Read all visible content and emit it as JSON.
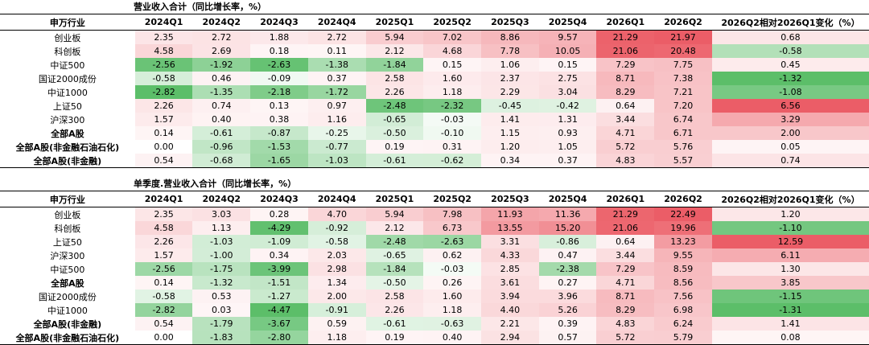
{
  "colors": {
    "positive": "#e8414c",
    "negative": "#3fb24f",
    "text": "#000000",
    "background": "#ffffff"
  },
  "chart_data": [
    {
      "type": "heatmap",
      "title": "营业收入合计（同比增长率，%）",
      "corner_label": "申万行业",
      "columns": [
        "2024Q1",
        "2024Q2",
        "2024Q3",
        "2024Q4",
        "2025Q1",
        "2025Q2",
        "2025Q3",
        "2025Q4",
        "2026Q1",
        "2026Q2"
      ],
      "change_column": "2026Q2相对2026Q1变化（%）",
      "rows": [
        {
          "label": "创业板",
          "bold": false,
          "values": [
            2.35,
            2.72,
            1.88,
            2.72,
            5.94,
            7.02,
            8.86,
            9.57,
            21.29,
            21.97
          ],
          "change": 0.68
        },
        {
          "label": "科创板",
          "bold": false,
          "values": [
            4.58,
            2.69,
            0.18,
            0.11,
            2.12,
            4.68,
            7.78,
            10.05,
            21.06,
            20.48
          ],
          "change": -0.58
        },
        {
          "label": "中证500",
          "bold": false,
          "values": [
            -2.56,
            -1.92,
            -2.63,
            -1.38,
            -1.84,
            0.15,
            1.06,
            0.15,
            7.29,
            7.75
          ],
          "change": 0.45
        },
        {
          "label": "国证2000成份",
          "bold": false,
          "values": [
            -0.58,
            0.46,
            -0.09,
            0.37,
            2.58,
            1.6,
            2.37,
            2.75,
            8.71,
            7.38
          ],
          "change": -1.32
        },
        {
          "label": "中证1000",
          "bold": false,
          "values": [
            -2.82,
            -1.35,
            -2.18,
            -1.72,
            2.26,
            1.18,
            2.29,
            3.04,
            8.29,
            7.21
          ],
          "change": -1.08
        },
        {
          "label": "上证50",
          "bold": false,
          "values": [
            2.26,
            0.74,
            0.13,
            0.97,
            -2.48,
            -2.32,
            -0.45,
            -0.42,
            0.64,
            7.2
          ],
          "change": 6.56
        },
        {
          "label": "沪深300",
          "bold": false,
          "values": [
            1.57,
            0.4,
            0.38,
            1.16,
            -0.65,
            -0.03,
            1.41,
            1.31,
            3.44,
            6.74
          ],
          "change": 3.29
        },
        {
          "label": "全部A股",
          "bold": true,
          "values": [
            0.14,
            -0.61,
            -0.87,
            -0.25,
            -0.5,
            -0.1,
            1.15,
            0.93,
            4.71,
            6.71
          ],
          "change": 2.0
        },
        {
          "label": "全部A股(非金融石油石化)",
          "bold": true,
          "values": [
            0.0,
            -0.96,
            -1.53,
            -0.77,
            0.19,
            0.31,
            1.2,
            1.05,
            5.72,
            5.76
          ],
          "change": 0.05
        },
        {
          "label": "全部A股(非金融)",
          "bold": true,
          "values": [
            0.54,
            -0.68,
            -1.65,
            -1.03,
            -0.61,
            -0.62,
            0.34,
            0.37,
            4.83,
            5.57
          ],
          "change": 0.74
        }
      ]
    },
    {
      "type": "heatmap",
      "title": "单季度.营业收入合计（同比增长率，%）",
      "corner_label": "申万行业",
      "columns": [
        "2024Q1",
        "2024Q2",
        "2024Q3",
        "2024Q4",
        "2025Q1",
        "2025Q2",
        "2025Q3",
        "2025Q4",
        "2026Q1",
        "2026Q2"
      ],
      "change_column": "2026Q2相对2026Q1变化（%）",
      "rows": [
        {
          "label": "创业板",
          "bold": false,
          "values": [
            2.35,
            3.03,
            0.28,
            4.7,
            5.94,
            7.98,
            11.93,
            11.36,
            21.29,
            22.49
          ],
          "change": 1.2
        },
        {
          "label": "科创板",
          "bold": false,
          "values": [
            4.58,
            1.13,
            -4.29,
            -0.92,
            2.12,
            6.73,
            13.55,
            15.2,
            21.06,
            19.96
          ],
          "change": -1.1
        },
        {
          "label": "上证50",
          "bold": false,
          "values": [
            2.26,
            -1.03,
            -1.09,
            -0.58,
            -2.48,
            -2.63,
            3.31,
            -0.86,
            0.64,
            13.23
          ],
          "change": 12.59
        },
        {
          "label": "沪深300",
          "bold": false,
          "values": [
            1.57,
            -1.0,
            0.34,
            2.03,
            -0.65,
            0.62,
            4.33,
            0.47,
            3.44,
            9.55
          ],
          "change": 6.11
        },
        {
          "label": "中证500",
          "bold": false,
          "values": [
            -2.56,
            -1.75,
            -3.99,
            2.98,
            -1.84,
            -0.03,
            2.85,
            -2.38,
            7.29,
            8.59
          ],
          "change": 1.3
        },
        {
          "label": "全部A股",
          "bold": true,
          "values": [
            0.14,
            -1.32,
            -1.51,
            1.34,
            -0.5,
            0.26,
            3.61,
            0.27,
            4.71,
            8.56
          ],
          "change": 3.85
        },
        {
          "label": "国证2000成份",
          "bold": false,
          "values": [
            -0.58,
            0.53,
            -1.27,
            2.0,
            2.58,
            1.6,
            3.94,
            3.96,
            8.71,
            7.56
          ],
          "change": -1.15
        },
        {
          "label": "中证1000",
          "bold": false,
          "values": [
            -2.82,
            0.03,
            -4.47,
            -0.91,
            2.26,
            1.18,
            4.4,
            5.26,
            8.29,
            6.98
          ],
          "change": -1.31
        },
        {
          "label": "全部A股(非金融)",
          "bold": true,
          "values": [
            0.54,
            -1.79,
            -3.67,
            0.59,
            -0.61,
            -0.63,
            2.21,
            0.39,
            4.83,
            6.24
          ],
          "change": 1.41
        },
        {
          "label": "全部A股(非金融石油石化)",
          "bold": true,
          "values": [
            0.0,
            -1.83,
            -2.8,
            1.18,
            0.19,
            0.4,
            2.94,
            0.57,
            5.72,
            5.79
          ],
          "change": 0.08
        }
      ]
    }
  ]
}
